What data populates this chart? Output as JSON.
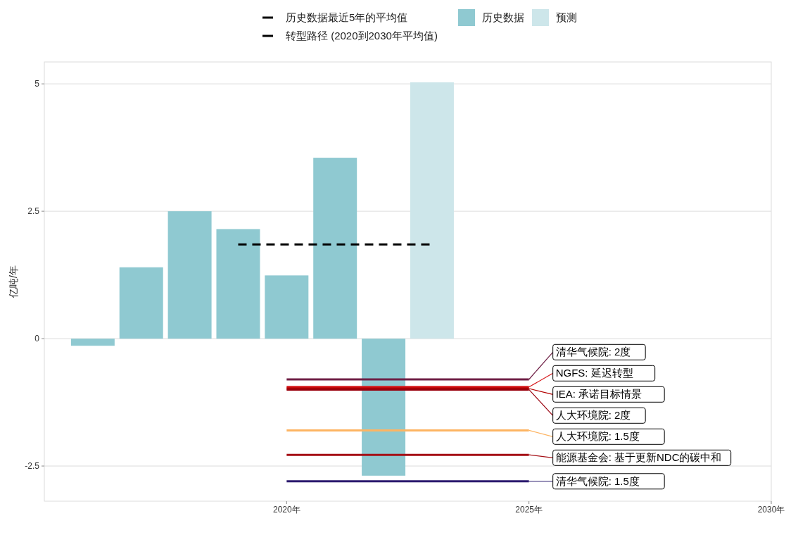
{
  "chart_data": {
    "type": "bar",
    "ylabel": "亿吨/年",
    "xlim": [
      2015,
      2030
    ],
    "xticks": [
      {
        "value": 2020,
        "label": "2020年"
      },
      {
        "value": 2025,
        "label": "2025年"
      },
      {
        "value": 2030,
        "label": "2030年"
      }
    ],
    "ylim": [
      -3.19,
      5.43
    ],
    "yticks": [
      -2.5,
      0,
      2.5,
      5
    ],
    "grid": "y",
    "legend": "top",
    "annotations": [
      "转型路径 (2020到2030年平均值)"
    ],
    "series": [
      {
        "name": "历史数据",
        "color": "#8fc9d1",
        "x": [
          2016,
          2017,
          2018,
          2019,
          2020,
          2021,
          2022
        ],
        "values": [
          -0.14,
          1.4,
          2.5,
          2.15,
          1.24,
          3.55,
          -2.69
        ]
      },
      {
        "name": "预测",
        "color": "#cde6ea",
        "x": [
          2023
        ],
        "values": [
          5.03
        ]
      },
      {
        "name": "历史数据最近5年的平均值",
        "type": "line",
        "line_style": "dashed",
        "color": "#000000",
        "x": [
          2019,
          2023
        ],
        "values": [
          1.85,
          1.85
        ]
      },
      {
        "name": "清华气候院: 2度",
        "type": "line",
        "color": "#6e1f45",
        "x": [
          2020,
          2025
        ],
        "values": [
          -0.8,
          -0.8
        ]
      },
      {
        "name": "NGFS: 延迟转型",
        "type": "line",
        "color": "#d7191c",
        "x": [
          2020,
          2025
        ],
        "values": [
          -0.95,
          -0.95
        ]
      },
      {
        "name": "IEA: 承诺目标情景",
        "type": "line",
        "color": "#b30000",
        "x": [
          2020,
          2025
        ],
        "values": [
          -0.98,
          -0.98
        ]
      },
      {
        "name": "人大环境院: 2度",
        "type": "line",
        "color": "#99000d",
        "x": [
          2020,
          2025
        ],
        "values": [
          -1.0,
          -1.0
        ]
      },
      {
        "name": "人大环境院: 1.5度",
        "type": "line",
        "color": "#fdb462",
        "x": [
          2020,
          2025
        ],
        "values": [
          -1.8,
          -1.8
        ]
      },
      {
        "name": "能源基金会: 基于更新NDC的碳中和",
        "type": "line",
        "color": "#a50f15",
        "x": [
          2020,
          2025
        ],
        "values": [
          -2.28,
          -2.28
        ]
      },
      {
        "name": "清华气候院: 1.5度",
        "type": "line",
        "color": "#2b1a6e",
        "x": [
          2020,
          2025
        ],
        "values": [
          -2.8,
          -2.8
        ]
      }
    ]
  }
}
